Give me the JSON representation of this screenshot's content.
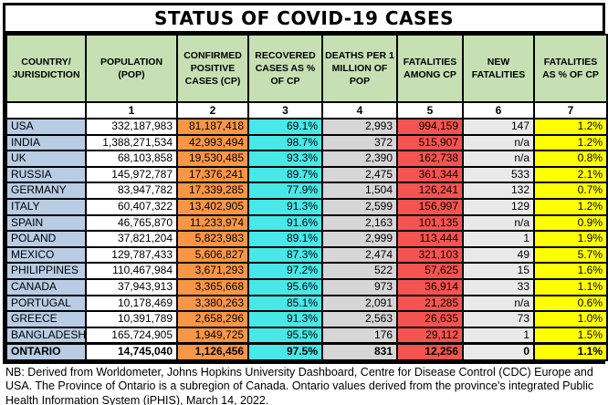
{
  "title": "STATUS OF COVID-19 CASES",
  "colors": {
    "header-green": "#c6e0b4",
    "country-blue": "#b8cce4",
    "cp-orange": "#f79646",
    "recovered-cyan": "#49e8e8",
    "deaths-gray": "#d6d6d6",
    "fatalities-red": "#f4544f",
    "new-fat-gray": "#e9e9e9",
    "pct-yellow": "#ffff00",
    "border-black": "#000000"
  },
  "table": {
    "columns": [
      {
        "id": "country",
        "label": "COUNTRY/ JURISDICTION",
        "number": ""
      },
      {
        "id": "pop",
        "label": "POPULATION (POP)",
        "number": "1"
      },
      {
        "id": "cp",
        "label": "CONFIRMED POSITIVE CASES (CP)",
        "number": "2"
      },
      {
        "id": "rec",
        "label": "RECOVERED CASES AS % OF CP",
        "number": "3"
      },
      {
        "id": "deaths",
        "label": "DEATHS PER 1 MILLION OF POP",
        "number": "4"
      },
      {
        "id": "fat",
        "label": "FATALITIES AMONG CP",
        "number": "5"
      },
      {
        "id": "new_fat",
        "label": "NEW FATALITIES",
        "number": "6"
      },
      {
        "id": "fat_pct",
        "label": "FATALITIES AS % OF CP",
        "number": "7"
      }
    ],
    "rows": [
      {
        "country": "USA",
        "pop": "332,187,983",
        "cp": "81,187,418",
        "rec": "69.1%",
        "deaths": "2,993",
        "fat": "994,159",
        "new_fat": "147",
        "fat_pct": "1.2%",
        "bold": false
      },
      {
        "country": "INDIA",
        "pop": "1,388,271,534",
        "cp": "42,993,494",
        "rec": "98.7%",
        "deaths": "372",
        "fat": "515,907",
        "new_fat": "n/a",
        "fat_pct": "1.2%",
        "bold": false
      },
      {
        "country": "UK",
        "pop": "68,103,858",
        "cp": "19,530,485",
        "rec": "93.3%",
        "deaths": "2,390",
        "fat": "162,738",
        "new_fat": "n/a",
        "fat_pct": "0.8%",
        "bold": false
      },
      {
        "country": "RUSSIA",
        "pop": "145,972,787",
        "cp": "17,376,241",
        "rec": "89.7%",
        "deaths": "2,475",
        "fat": "361,344",
        "new_fat": "533",
        "fat_pct": "2.1%",
        "bold": false
      },
      {
        "country": "GERMANY",
        "pop": "83,947,782",
        "cp": "17,339,285",
        "rec": "77.9%",
        "deaths": "1,504",
        "fat": "126,241",
        "new_fat": "132",
        "fat_pct": "0.7%",
        "bold": false
      },
      {
        "country": "ITALY",
        "pop": "60,407,322",
        "cp": "13,402,905",
        "rec": "91.3%",
        "deaths": "2,599",
        "fat": "156,997",
        "new_fat": "129",
        "fat_pct": "1.2%",
        "bold": false
      },
      {
        "country": "SPAIN",
        "pop": "46,765,870",
        "cp": "11,233,974",
        "rec": "91.6%",
        "deaths": "2,163",
        "fat": "101,135",
        "new_fat": "n/a",
        "fat_pct": "0.9%",
        "bold": false
      },
      {
        "country": "POLAND",
        "pop": "37,821,204",
        "cp": "5,823,983",
        "rec": "89.1%",
        "deaths": "2,999",
        "fat": "113,444",
        "new_fat": "1",
        "fat_pct": "1.9%",
        "bold": false
      },
      {
        "country": "MEXICO",
        "pop": "129,787,433",
        "cp": "5,606,827",
        "rec": "87.3%",
        "deaths": "2,474",
        "fat": "321,103",
        "new_fat": "49",
        "fat_pct": "5.7%",
        "bold": false
      },
      {
        "country": "PHILIPPINES",
        "pop": "110,467,984",
        "cp": "3,671,293",
        "rec": "97.2%",
        "deaths": "522",
        "fat": "57,625",
        "new_fat": "15",
        "fat_pct": "1.6%",
        "bold": false
      },
      {
        "country": "CANADA",
        "pop": "37,943,913",
        "cp": "3,365,668",
        "rec": "95.6%",
        "deaths": "973",
        "fat": "36,914",
        "new_fat": "33",
        "fat_pct": "1.1%",
        "bold": false
      },
      {
        "country": "PORTUGAL",
        "pop": "10,178,469",
        "cp": "3,380,263",
        "rec": "85.1%",
        "deaths": "2,091",
        "fat": "21,285",
        "new_fat": "n/a",
        "fat_pct": "0.6%",
        "bold": false
      },
      {
        "country": "GREECE",
        "pop": "10,391,789",
        "cp": "2,658,296",
        "rec": "91.3%",
        "deaths": "2,563",
        "fat": "26,635",
        "new_fat": "73",
        "fat_pct": "1.0%",
        "bold": false
      },
      {
        "country": "BANGLADESH",
        "pop": "165,724,905",
        "cp": "1,949,725",
        "rec": "95.5%",
        "deaths": "176",
        "fat": "29,112",
        "new_fat": "1",
        "fat_pct": "1.5%",
        "bold": false
      },
      {
        "country": "ONTARIO",
        "pop": "14,745,040",
        "cp": "1,126,456",
        "rec": "97.5%",
        "deaths": "831",
        "fat": "12,256",
        "new_fat": "0",
        "fat_pct": "1.1%",
        "bold": true
      }
    ]
  },
  "footnote": "NB: Derived from Worldometer, Johns Hopkins University Dashboard, Centre for Disease Control (CDC) Europe and USA. The Province of Ontario is a subregion of Canada. Ontario values derived from the province's integrated Public Health Information System (iPHIS), March 14, 2022."
}
